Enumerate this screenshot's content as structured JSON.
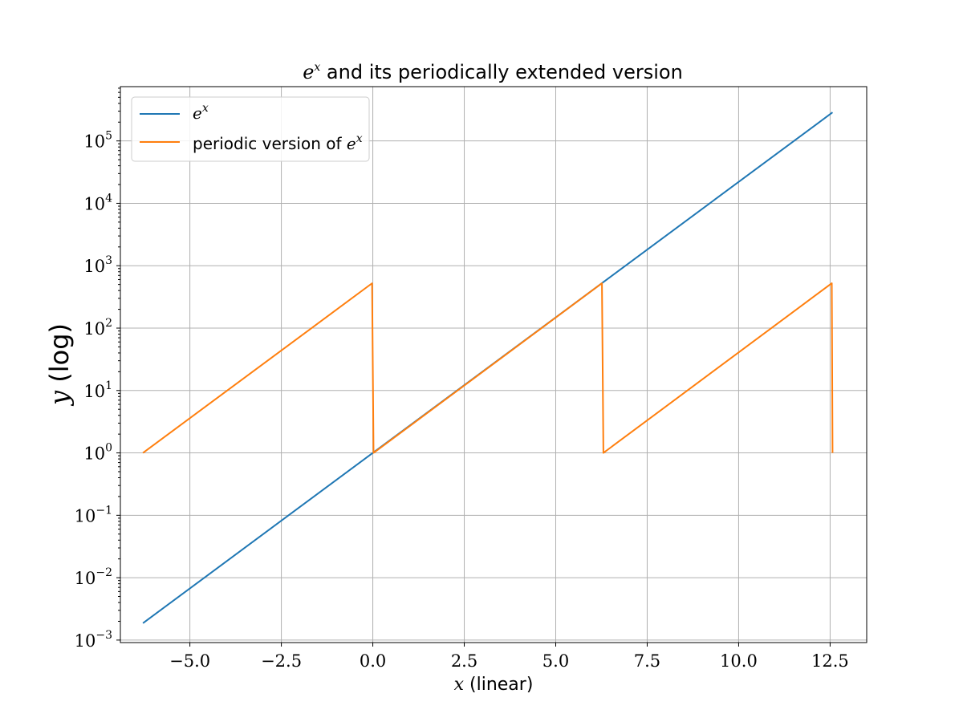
{
  "chart_data": {
    "type": "line",
    "title_math": "e",
    "title_math_sup": "x",
    "title_text": " and its periodically extended version",
    "xlabel_math": "x",
    "xlabel_text": " (linear)",
    "ylabel_math": "y",
    "ylabel_text": " (log)",
    "xlim": [
      -6.9,
      13.5
    ],
    "ylim_log10": [
      -3.04,
      5.87
    ],
    "yscale": "log",
    "grid": true,
    "x_ticks": [
      -5.0,
      -2.5,
      0.0,
      2.5,
      5.0,
      7.5,
      10.0,
      12.5
    ],
    "x_tick_labels": [
      "−5.0",
      "−2.5",
      "0.0",
      "2.5",
      "5.0",
      "7.5",
      "10.0",
      "12.5"
    ],
    "y_tick_exponents": [
      -3,
      -2,
      -1,
      0,
      1,
      2,
      3,
      4,
      5
    ],
    "y_tick_labels": [
      {
        "base": "10",
        "exp": "−3"
      },
      {
        "base": "10",
        "exp": "−2"
      },
      {
        "base": "10",
        "exp": "−1"
      },
      {
        "base": "10",
        "exp": "0"
      },
      {
        "base": "10",
        "exp": "1"
      },
      {
        "base": "10",
        "exp": "2"
      },
      {
        "base": "10",
        "exp": "3"
      },
      {
        "base": "10",
        "exp": "4"
      },
      {
        "base": "10",
        "exp": "5"
      }
    ],
    "legend_position": "upper-left",
    "series": [
      {
        "name": "e^x",
        "legend_math": "e",
        "legend_sup": "x",
        "legend_prefix": "",
        "color": "#1f77b4",
        "x": [
          -6.283,
          12.566
        ],
        "y": [
          0.001867,
          286751
        ]
      },
      {
        "name": "periodic version of e^x",
        "legend_prefix": "periodic version of ",
        "legend_math": "e",
        "legend_sup": "x",
        "color": "#ff7f0e",
        "x": [
          -6.283,
          -0.02,
          0.02,
          6.263,
          6.303,
          12.546,
          12.566
        ],
        "y": [
          1,
          523,
          1,
          524,
          1,
          524,
          1
        ]
      }
    ]
  }
}
